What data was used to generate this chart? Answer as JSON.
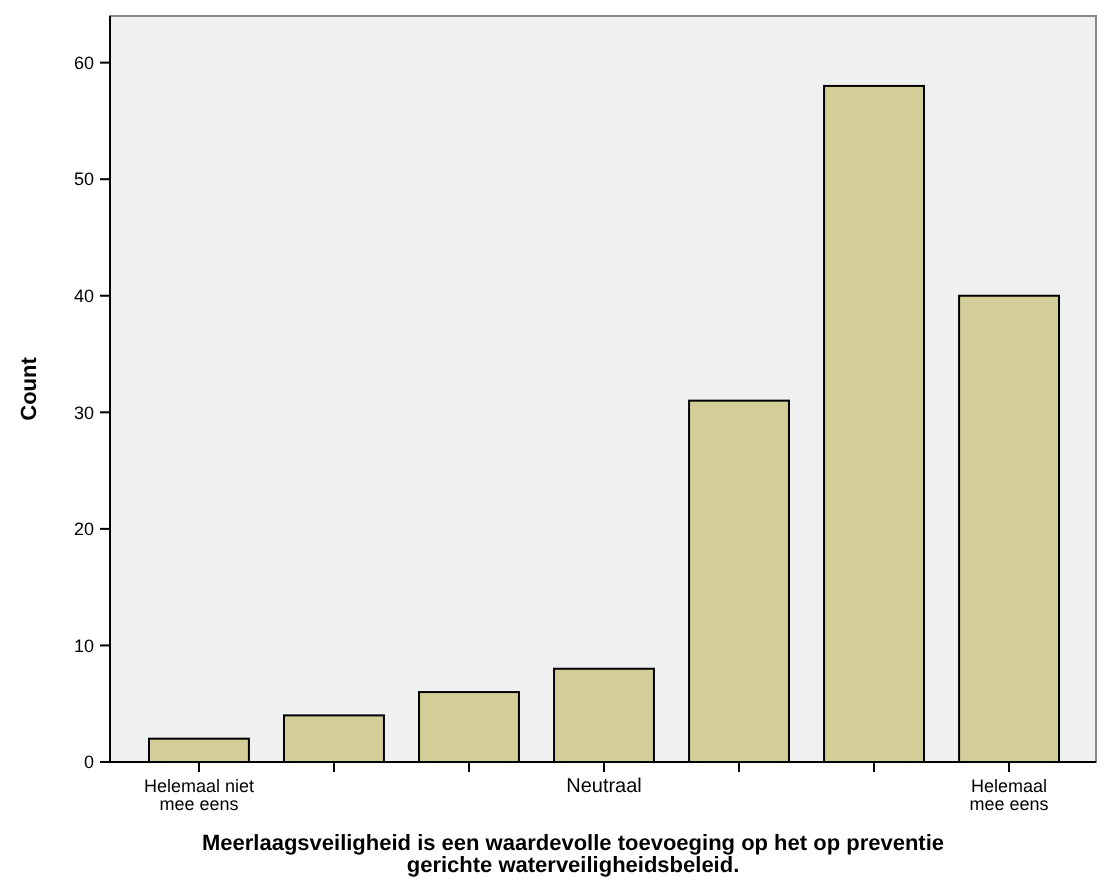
{
  "chart_data": {
    "type": "bar",
    "xlabel": "Meerlaagsveiligheid is een waardevolle toevoeging op het op preventie\ngerichte waterveiligheidsbeleid.",
    "ylabel": "Count",
    "categories": [
      "Helemaal niet\nmee eens",
      null,
      null,
      "Neutraal",
      null,
      null,
      "Helemaal\nmee eens"
    ],
    "values": [
      2,
      4,
      6,
      8,
      31,
      58,
      40
    ],
    "color": "#d3ce97",
    "ylim": [
      0,
      64
    ],
    "yticks": [
      0,
      10,
      20,
      30,
      40,
      50,
      60
    ],
    "grid": false
  }
}
